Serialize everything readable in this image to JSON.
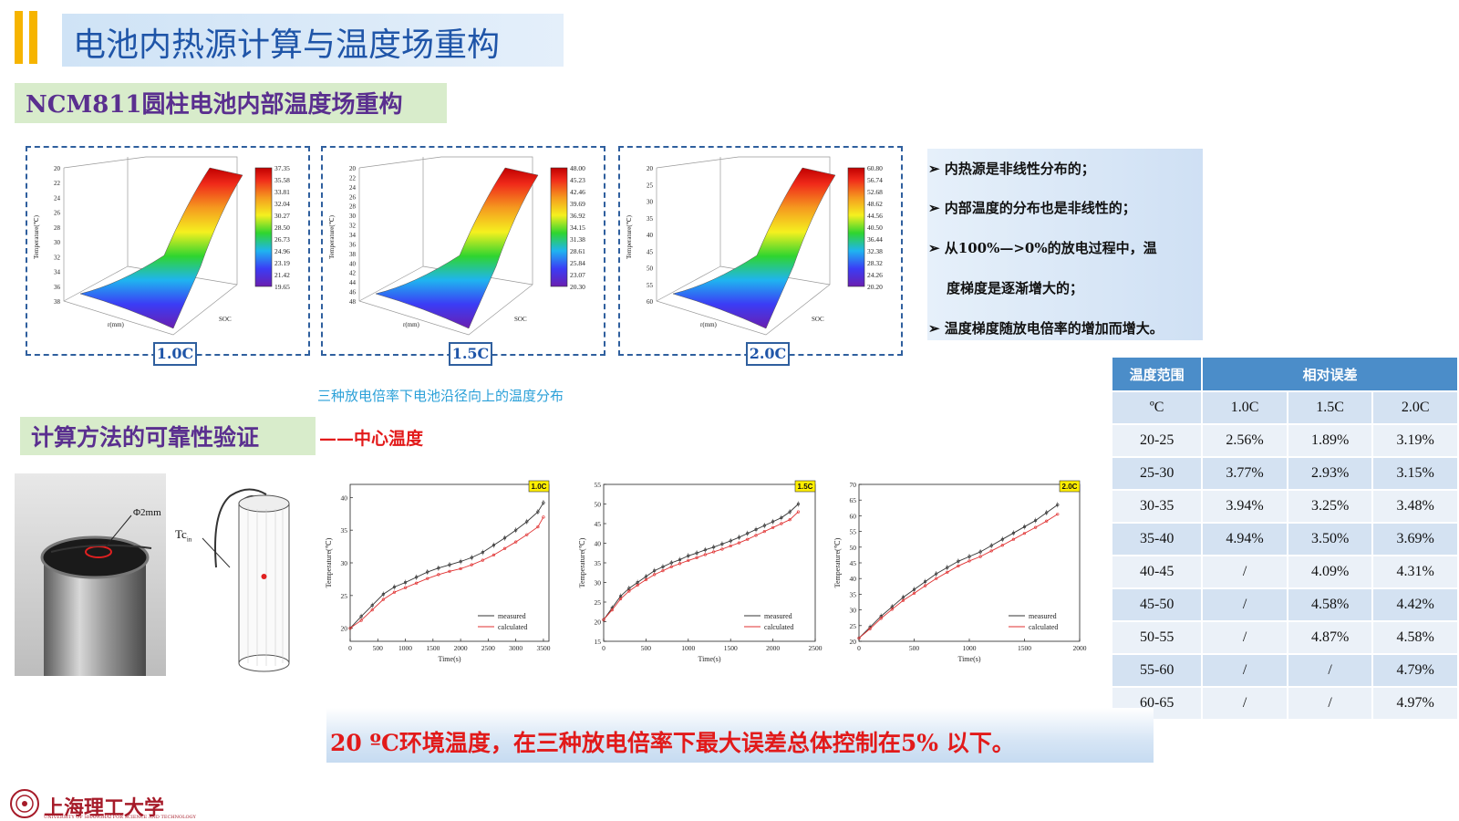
{
  "header": {
    "title": "电池内热源计算与温度场重构"
  },
  "section1": {
    "title": "NCM811圆柱电池内部温度场重构"
  },
  "surfaces": [
    {
      "label": "1.0C",
      "ticks": [
        "37.35",
        "35.58",
        "33.81",
        "32.04",
        "30.27",
        "28.50",
        "26.73",
        "24.96",
        "23.19",
        "21.42",
        "19.65"
      ],
      "zticks": [
        "38",
        "36",
        "34",
        "32",
        "30",
        "28",
        "26",
        "24",
        "22",
        "20"
      ]
    },
    {
      "label": "1.5C",
      "ticks": [
        "48.00",
        "45.23",
        "42.46",
        "39.69",
        "36.92",
        "34.15",
        "31.38",
        "28.61",
        "25.84",
        "23.07",
        "20.30"
      ],
      "zticks": [
        "48",
        "46",
        "44",
        "42",
        "40",
        "38",
        "36",
        "34",
        "32",
        "30",
        "28",
        "26",
        "24",
        "22",
        "20"
      ]
    },
    {
      "label": "2.0C",
      "ticks": [
        "60.80",
        "56.74",
        "52.68",
        "48.62",
        "44.56",
        "40.50",
        "36.44",
        "32.38",
        "28.32",
        "24.26",
        "20.20"
      ],
      "zticks": [
        "60",
        "55",
        "50",
        "45",
        "40",
        "35",
        "30",
        "25",
        "20"
      ]
    }
  ],
  "surface_axes": {
    "z": "Temperature(℃)",
    "x": "r(mm)",
    "y": "SOC"
  },
  "caption": "三种放电倍率下电池沿径向上的温度分布",
  "bullets": [
    "➢ 内热源是非线性分布的；",
    "➢ 内部温度的分布也是非线性的；",
    "➢ 从100%—>0%的放电过程中，温",
    "度梯度是逐渐增大的；",
    "➢ 温度梯度随放电倍率的增加而增大。"
  ],
  "section2": {
    "title": "计算方法的可靠性验证",
    "suffix": "——中心温度"
  },
  "photo": {
    "label": "Φ2mm"
  },
  "diagram": {
    "label": "Tc"
  },
  "table": {
    "header": [
      "温度范围",
      "相对误差"
    ],
    "subheader": [
      "ºC",
      "1.0C",
      "1.5C",
      "2.0C"
    ],
    "rows": [
      [
        "20-25",
        "2.56%",
        "1.89%",
        "3.19%"
      ],
      [
        "25-30",
        "3.77%",
        "2.93%",
        "3.15%"
      ],
      [
        "30-35",
        "3.94%",
        "3.25%",
        "3.48%"
      ],
      [
        "35-40",
        "4.94%",
        "3.50%",
        "3.69%"
      ],
      [
        "40-45",
        "/",
        "4.09%",
        "4.31%"
      ],
      [
        "45-50",
        "/",
        "4.58%",
        "4.42%"
      ],
      [
        "50-55",
        "/",
        "4.87%",
        "4.58%"
      ],
      [
        "55-60",
        "/",
        "/",
        "4.79%"
      ],
      [
        "60-65",
        "/",
        "/",
        "4.97%"
      ]
    ]
  },
  "conclusion": "20 ºC环境温度，在三种放电倍率下最大误差总体控制在5% 以下。",
  "logo": {
    "name": "上海理工大学",
    "sub": "UNIVERSITY OF SHANGHAI FOR SCIENCE AND TECHNOLOGY"
  },
  "chart_data": [
    {
      "type": "line",
      "tag": "1.0C",
      "xlabel": "Time(s)",
      "ylabel": "Temperature(℃)",
      "xlim": [
        0,
        3600
      ],
      "ylim": [
        18,
        42
      ],
      "xticks": [
        0,
        500,
        1000,
        1500,
        2000,
        2500,
        3000,
        3500
      ],
      "yticks": [
        20,
        25,
        30,
        35,
        40
      ],
      "series": [
        {
          "name": "measured",
          "color": "#333333",
          "x": [
            0,
            200,
            400,
            600,
            800,
            1000,
            1200,
            1400,
            1600,
            1800,
            2000,
            2200,
            2400,
            2600,
            2800,
            3000,
            3200,
            3400,
            3500
          ],
          "values": [
            20,
            21.8,
            23.5,
            25.2,
            26.3,
            27.0,
            27.8,
            28.6,
            29.2,
            29.7,
            30.2,
            30.8,
            31.6,
            32.7,
            33.8,
            35.0,
            36.3,
            37.8,
            39.2
          ]
        },
        {
          "name": "calculated",
          "color": "#e03030",
          "x": [
            0,
            200,
            400,
            600,
            800,
            1000,
            1200,
            1400,
            1600,
            1800,
            2000,
            2200,
            2400,
            2600,
            2800,
            3000,
            3200,
            3400,
            3500
          ],
          "values": [
            20,
            21.2,
            22.8,
            24.4,
            25.5,
            26.2,
            26.9,
            27.6,
            28.2,
            28.7,
            29.1,
            29.7,
            30.4,
            31.2,
            32.2,
            33.2,
            34.3,
            35.5,
            37.0
          ]
        }
      ]
    },
    {
      "type": "line",
      "tag": "1.5C",
      "xlabel": "Time(s)",
      "ylabel": "Temperature(℃)",
      "xlim": [
        0,
        2500
      ],
      "ylim": [
        15,
        55
      ],
      "xticks": [
        0,
        500,
        1000,
        1500,
        2000,
        2500
      ],
      "yticks": [
        15,
        20,
        25,
        30,
        35,
        40,
        45,
        50,
        55
      ],
      "series": [
        {
          "name": "measured",
          "color": "#333333",
          "x": [
            0,
            100,
            200,
            300,
            400,
            500,
            600,
            700,
            800,
            900,
            1000,
            1100,
            1200,
            1300,
            1400,
            1500,
            1600,
            1700,
            1800,
            1900,
            2000,
            2100,
            2200,
            2300
          ],
          "values": [
            20.5,
            23.5,
            26.5,
            28.5,
            30,
            31.5,
            33,
            34,
            35,
            35.8,
            36.8,
            37.5,
            38.3,
            39,
            39.8,
            40.6,
            41.5,
            42.5,
            43.5,
            44.5,
            45.5,
            46.5,
            48,
            50
          ]
        },
        {
          "name": "calculated",
          "color": "#e03030",
          "x": [
            0,
            100,
            200,
            300,
            400,
            500,
            600,
            700,
            800,
            900,
            1000,
            1100,
            1200,
            1300,
            1400,
            1500,
            1600,
            1700,
            1800,
            1900,
            2000,
            2100,
            2200,
            2300
          ],
          "values": [
            20.5,
            23,
            25.8,
            27.8,
            29.3,
            30.7,
            32,
            33,
            34,
            34.8,
            35.6,
            36.3,
            37.1,
            37.8,
            38.5,
            39.3,
            40.1,
            41,
            42,
            43,
            44,
            45,
            46,
            48
          ]
        }
      ]
    },
    {
      "type": "line",
      "tag": "2.0C",
      "xlabel": "Time(s)",
      "ylabel": "Temperature(℃)",
      "xlim": [
        0,
        2000
      ],
      "ylim": [
        20,
        70
      ],
      "xticks": [
        0,
        500,
        1000,
        1500,
        2000
      ],
      "yticks": [
        20,
        25,
        30,
        35,
        40,
        45,
        50,
        55,
        60,
        65,
        70
      ],
      "series": [
        {
          "name": "measured",
          "color": "#333333",
          "x": [
            0,
            100,
            200,
            300,
            400,
            500,
            600,
            700,
            800,
            900,
            1000,
            1100,
            1200,
            1300,
            1400,
            1500,
            1600,
            1700,
            1800
          ],
          "values": [
            21,
            24.5,
            28,
            31,
            34,
            36.5,
            39,
            41.5,
            43.5,
            45.5,
            47,
            48.5,
            50.5,
            52.5,
            54.5,
            56.5,
            58.5,
            61,
            63.5
          ]
        },
        {
          "name": "calculated",
          "color": "#e03030",
          "x": [
            0,
            100,
            200,
            300,
            400,
            500,
            600,
            700,
            800,
            900,
            1000,
            1100,
            1200,
            1300,
            1400,
            1500,
            1600,
            1700,
            1800
          ],
          "values": [
            21,
            24,
            27.3,
            30.2,
            33,
            35.3,
            37.7,
            40,
            42,
            44,
            45.6,
            47,
            48.8,
            50.6,
            52.5,
            54.4,
            56.3,
            58.3,
            60.5
          ]
        }
      ]
    }
  ]
}
